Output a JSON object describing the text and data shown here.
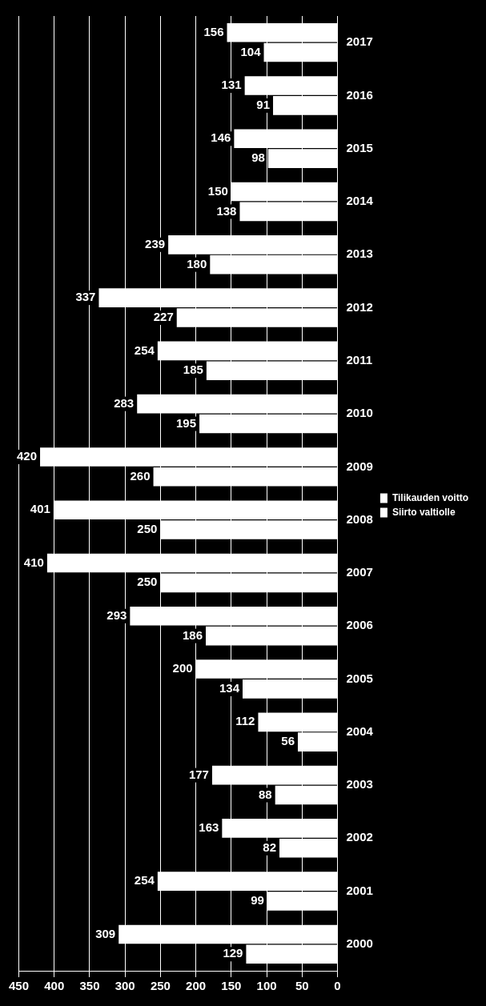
{
  "chart_data": {
    "type": "bar",
    "orientation": "horizontal",
    "categories": [
      "2017",
      "2016",
      "2015",
      "2014",
      "2013",
      "2012",
      "2011",
      "2010",
      "2009",
      "2008",
      "2007",
      "2006",
      "2005",
      "2004",
      "2003",
      "2002",
      "2001",
      "2000"
    ],
    "series": [
      {
        "name": "Tilikauden voitto",
        "color": "#ffffff",
        "values": [
          156,
          131,
          146,
          150,
          239,
          337,
          254,
          283,
          420,
          401,
          410,
          293,
          200,
          112,
          177,
          163,
          254,
          309
        ]
      },
      {
        "name": "Siirto valtiolle",
        "color": "#ffffff",
        "values": [
          104,
          91,
          98,
          138,
          180,
          227,
          185,
          195,
          260,
          250,
          250,
          186,
          134,
          56,
          88,
          82,
          99,
          129
        ]
      }
    ],
    "xlim": [
      450,
      0
    ],
    "xticks": [
      450,
      400,
      350,
      300,
      250,
      200,
      150,
      100,
      50,
      0
    ],
    "grid": "x",
    "legend": "right",
    "data_labels": true
  }
}
